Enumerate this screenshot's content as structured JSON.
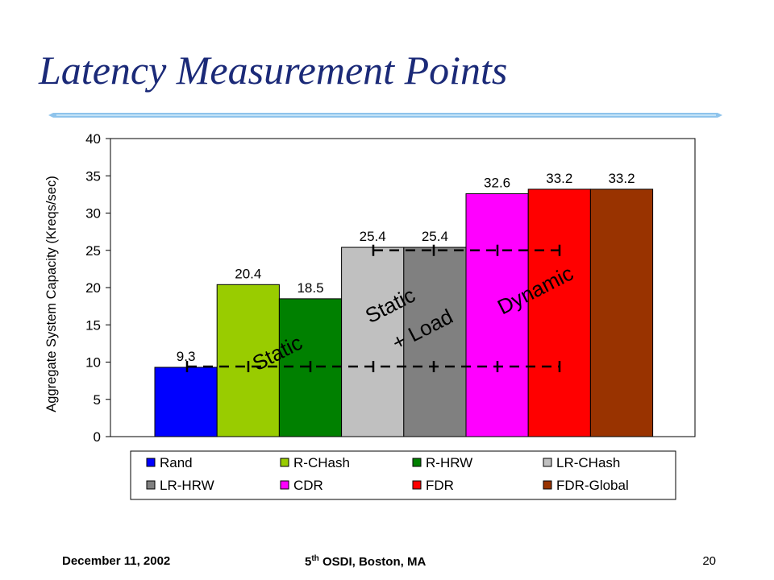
{
  "slide": {
    "title": "Latency Measurement Points",
    "footer_date": "December 11, 2002",
    "footer_conf_num": "5",
    "footer_conf_sup": "th",
    "footer_conf_rest": " OSDI, Boston, MA",
    "page_number": "20"
  },
  "colors": {
    "title": "#1b2a78",
    "rule": "#8fc4ec"
  },
  "chart_data": {
    "type": "bar",
    "categories": [
      "Rand",
      "R-CHash",
      "R-HRW",
      "LR-CHash",
      "LR-HRW",
      "CDR",
      "FDR",
      "FDR-Global"
    ],
    "values": [
      9.3,
      20.4,
      18.5,
      25.4,
      25.4,
      32.6,
      33.2,
      33.2
    ],
    "value_labels": [
      "9.3",
      "20.4",
      "18.5",
      "25.4",
      "25.4",
      "32.6",
      "33.2",
      "33.2"
    ],
    "bar_colors": [
      "#0000ff",
      "#99cc00",
      "#008000",
      "#c0c0c0",
      "#808080",
      "#ff00ff",
      "#ff0000",
      "#993300"
    ],
    "ylabel": "Aggregate System Capacity (Kreqs/sec)",
    "ylim": [
      0,
      40
    ],
    "yticks": [
      0,
      5,
      10,
      15,
      20,
      25,
      30,
      35,
      40
    ],
    "grid": false,
    "legend_position": "bottom",
    "annotations": [
      {
        "text": "Static",
        "line2": ""
      },
      {
        "text": "Static",
        "line2": "+ Load"
      },
      {
        "text": "Dynamic",
        "line2": ""
      }
    ]
  }
}
